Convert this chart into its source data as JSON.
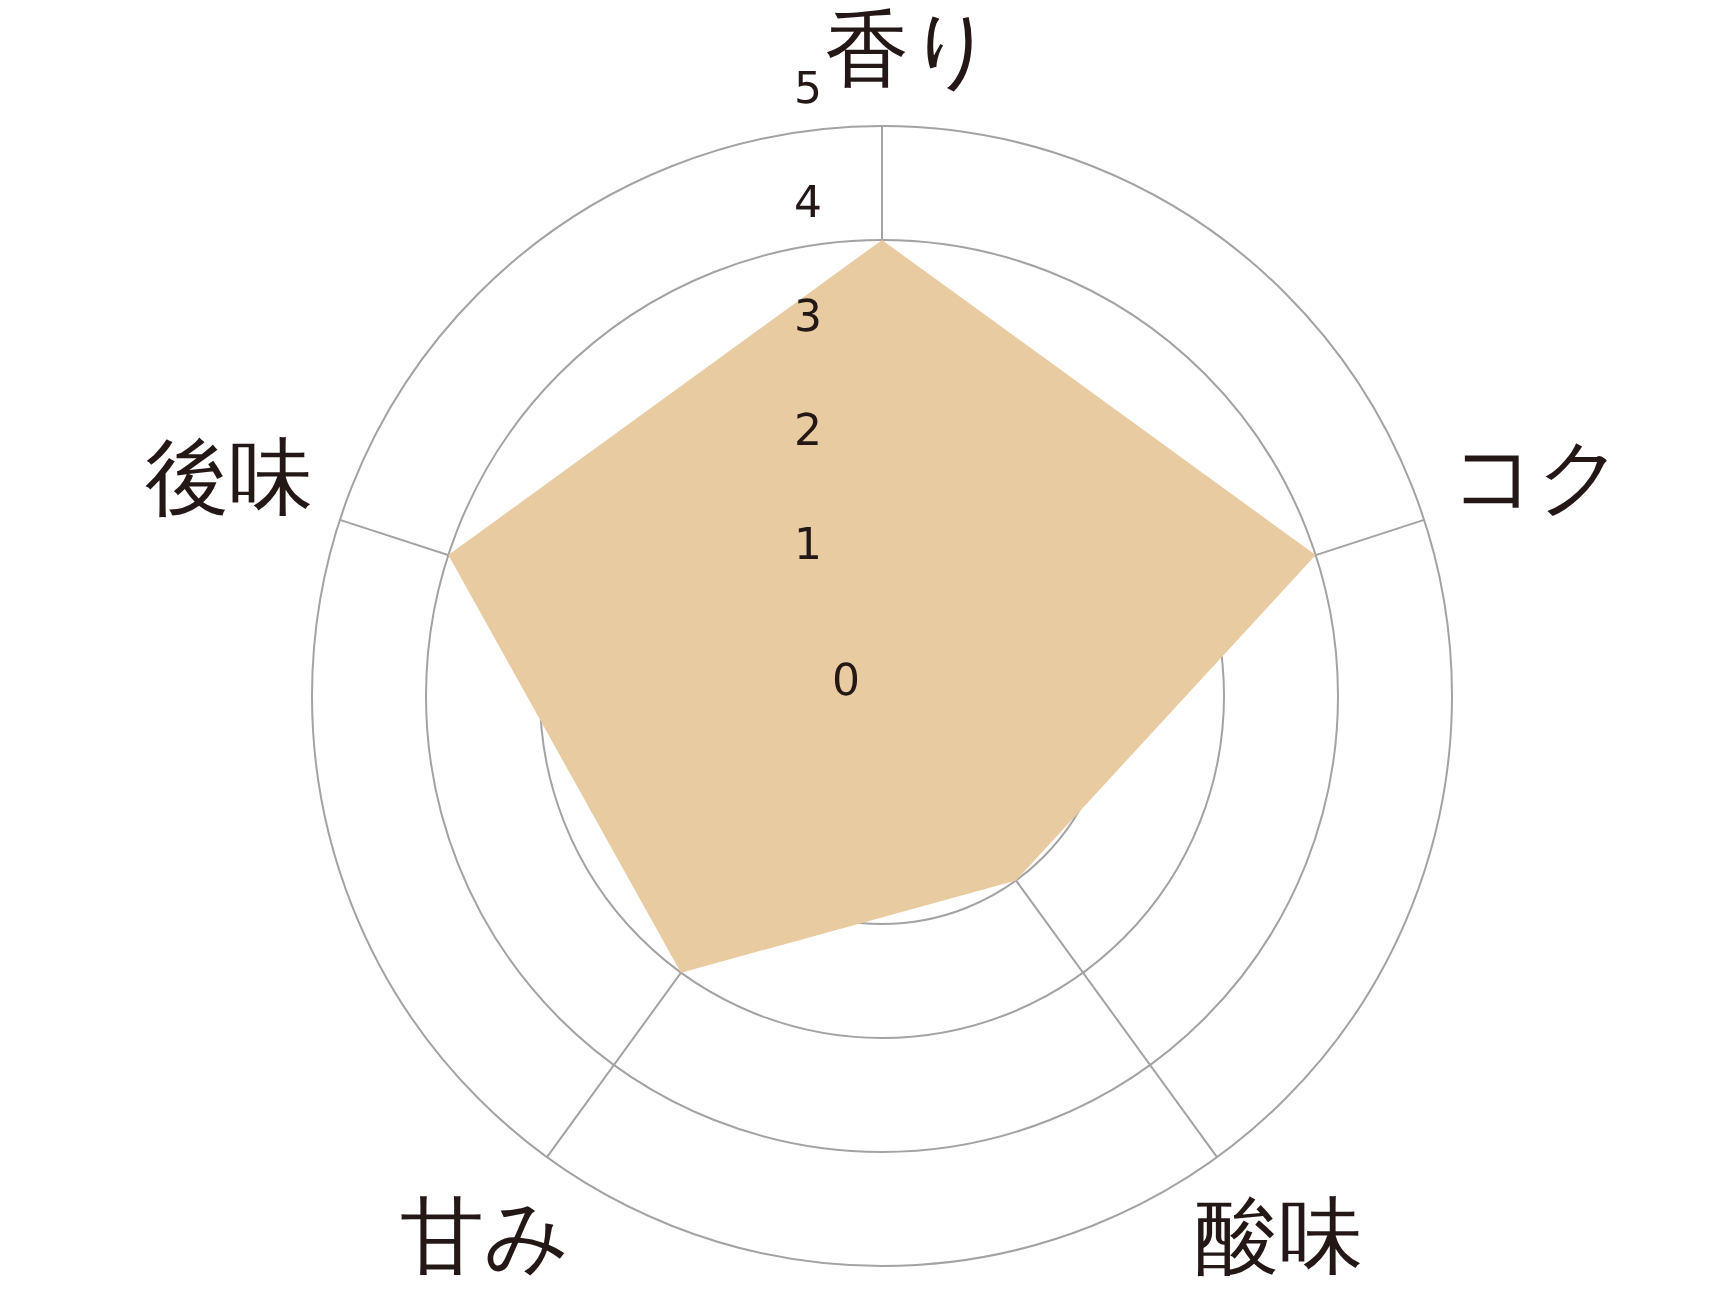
{
  "chart_data": {
    "type": "radar",
    "categories": [
      "香り",
      "コク",
      "酸味",
      "甘み",
      "後味"
    ],
    "series": [
      {
        "color": "#e8cba0",
        "values": [
          4,
          4,
          2,
          3,
          4
        ]
      }
    ],
    "ylim": [
      0,
      5
    ],
    "yticks": [
      0,
      1,
      2,
      3,
      4,
      5
    ],
    "grid": true
  }
}
